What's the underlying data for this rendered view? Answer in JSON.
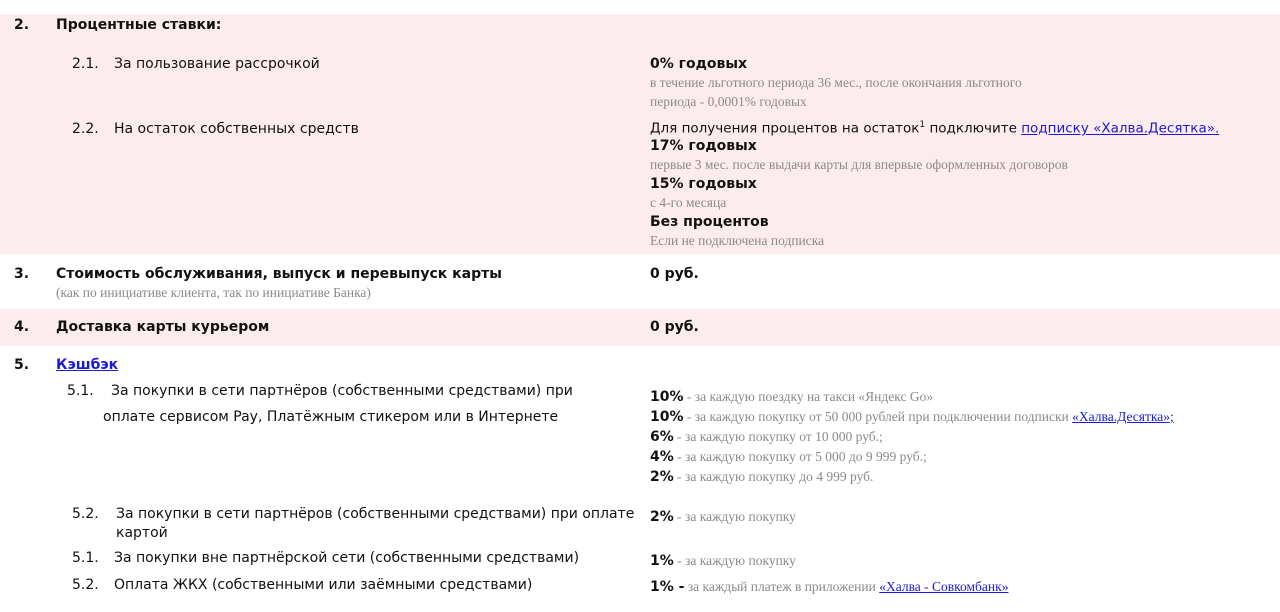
{
  "sections": {
    "s2": {
      "num": "2.",
      "title": "Процентные ставки:",
      "items": [
        {
          "num": "2.1.",
          "label": "За пользование рассрочкой",
          "value": "0% годовых",
          "note_1": "в течение льготного периода 36 мес., после окончания льготного",
          "note_2": "периода - 0,0001% годовых"
        },
        {
          "num": "2.2.",
          "label": "На остаток собственных средств",
          "intro": "Для получения процентов на остаток",
          "intro_sup": "1",
          "intro_2": " подключите ",
          "link": "подписку «Халва.Десятка».",
          "rate_1": "17% годовых",
          "rate_1_note": "первые 3 мес. после выдачи карты для впервые оформленных договоров",
          "rate_2": "15% годовых",
          "rate_2_note": "с 4-го месяца",
          "rate_3": "Без процентов",
          "rate_3_note": "Если не подключена подписка"
        }
      ]
    },
    "s3": {
      "num": "3.",
      "title": "Стоимость обслуживания, выпуск и перевыпуск карты",
      "note": "(как по инициативе клиента, так по инициативе Банка)",
      "value": "0 руб."
    },
    "s4": {
      "num": "4.",
      "title": "Доставка карты курьером",
      "value": "0 руб."
    },
    "s5": {
      "num": "5.",
      "title": "Кэшбэк",
      "items": [
        {
          "num": "5.1.",
          "label_1": "За покупки в сети партнёров (собственными средствами) при",
          "label_2": "оплате сервисом Pay, Платёжным стикером или в Интернете",
          "rows": [
            {
              "pct": "10%",
              "text": " - за каждую поездку на такси «Яндекс Go»"
            },
            {
              "pct": "10%",
              "text": " - за каждую покупку от 50 000 рублей при подключении подписки ",
              "link": "«Халва.Десятка»;"
            },
            {
              "pct": "6%",
              "text": " - за каждую покупку от 10 000 руб.;"
            },
            {
              "pct": "4%",
              "text": " - за каждую покупку от 5 000 до 9 999 руб.;"
            },
            {
              "pct": "2%",
              "text": " - за каждую покупку до 4 999 руб."
            }
          ]
        },
        {
          "num": "5.2.",
          "label_1": "За покупки в сети партнёров (собственными средствами) при оплате",
          "label_2": "картой",
          "pct": "2%",
          "text": " - за каждую покупку"
        },
        {
          "num": "5.1.",
          "label_1": "За покупки вне партнёрской сети (собственными средствами)",
          "pct": "1%",
          "text": " - за каждую покупку"
        },
        {
          "num": "5.2.",
          "label_1": "Оплата ЖКХ (собственными или заёмными средствами)",
          "pct": "1% -",
          "text": " за каждый платеж в приложении ",
          "link": "«Халва - Совкомбанк»"
        }
      ]
    }
  },
  "colors": {
    "band": "#fdeced",
    "link": "#1a1ad6",
    "note": "#8a8a8a"
  }
}
